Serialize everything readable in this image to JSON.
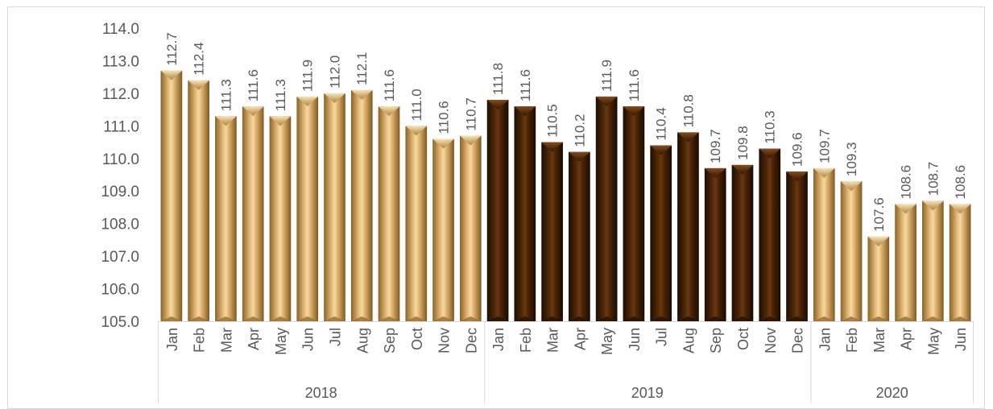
{
  "chart_data": {
    "type": "bar",
    "title": "",
    "xlabel": "",
    "ylabel": "",
    "ylim": [
      105.0,
      114.0
    ],
    "yticks": [
      "105.0",
      "106.0",
      "107.0",
      "108.0",
      "109.0",
      "110.0",
      "111.0",
      "112.0",
      "113.0",
      "114.0"
    ],
    "grid": false,
    "legend": "none",
    "colors": {
      "light": "#d4a865",
      "dark": "#4a2406",
      "text": "#595959"
    },
    "groups": [
      {
        "year": "2018",
        "color": "light",
        "months": [
          "Jan",
          "Feb",
          "Mar",
          "Apr",
          "May",
          "Jun",
          "Jul",
          "Aug",
          "Sep",
          "Oct",
          "Nov",
          "Dec"
        ],
        "values": [
          112.7,
          112.4,
          111.3,
          111.6,
          111.3,
          111.9,
          112.0,
          112.1,
          111.6,
          111.0,
          110.6,
          110.7
        ],
        "labels": [
          "112.7",
          "112.4",
          "111.3",
          "111.6",
          "111.3",
          "111.9",
          "112.0",
          "112.1",
          "111.6",
          "111.0",
          "110.6",
          "110.7"
        ]
      },
      {
        "year": "2019",
        "color": "dark",
        "months": [
          "Jan",
          "Feb",
          "Mar",
          "Apr",
          "May",
          "Jun",
          "Jul",
          "Aug",
          "Sep",
          "Oct",
          "Nov",
          "Dec"
        ],
        "values": [
          111.8,
          111.6,
          110.5,
          110.2,
          111.9,
          111.6,
          110.4,
          110.8,
          109.7,
          109.8,
          110.3,
          109.6
        ],
        "labels": [
          "111.8",
          "111.6",
          "110.5",
          "110.2",
          "111.9",
          "111.6",
          "110.4",
          "110.8",
          "109.7",
          "109.8",
          "110.3",
          "109.6"
        ]
      },
      {
        "year": "2020",
        "color": "light",
        "months": [
          "Jan",
          "Feb",
          "Mar",
          "Apr",
          "May",
          "Jun"
        ],
        "values": [
          109.7,
          109.3,
          107.6,
          108.6,
          108.7,
          108.6
        ],
        "labels": [
          "109.7",
          "109.3",
          "107.6",
          "108.6",
          "108.7",
          "108.6"
        ]
      }
    ]
  }
}
